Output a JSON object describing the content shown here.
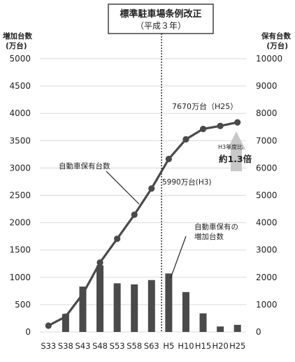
{
  "chart_data": {
    "type": "bar+line",
    "banner": {
      "line1": "標準駐車場条例改正",
      "line2": "（平成３年）"
    },
    "left_axis": {
      "title_line1": "増加台数",
      "title_line2": "(万台)",
      "ticks": [
        0,
        500,
        1000,
        1500,
        2000,
        2500,
        3000,
        3500,
        4000,
        4500,
        5000
      ],
      "ylim": [
        0,
        5000
      ]
    },
    "right_axis": {
      "title_line1": "保有台数",
      "title_line2": "(万台)",
      "ticks": [
        0,
        1000,
        2000,
        3000,
        4000,
        5000,
        6000,
        7000,
        8000,
        9000,
        10000
      ],
      "ylim": [
        0,
        10000
      ]
    },
    "categories": [
      "S33",
      "S38",
      "S43",
      "S48",
      "S53",
      "S58",
      "S63",
      "H5",
      "H10",
      "H15",
      "H20",
      "H25"
    ],
    "series": [
      {
        "name": "自動車保有の増加台数",
        "type": "bar",
        "axis": "left",
        "color": "#4a4a4a",
        "values": [
          0,
          330,
          830,
          1220,
          890,
          870,
          950,
          1070,
          730,
          340,
          100,
          130
        ]
      },
      {
        "name": "自動車保有台数",
        "type": "line",
        "axis": "right",
        "color": "#4a4a4a",
        "values": [
          230,
          560,
          1390,
          2540,
          3410,
          4290,
          5250,
          6330,
          7050,
          7430,
          7540,
          7670
        ]
      }
    ],
    "reference_line": {
      "position": "H3",
      "style": "dotted"
    },
    "annotations": {
      "line_label": "自動車保有台数",
      "bar_label_line1": "自動車保有の",
      "bar_label_line2": "増加台数",
      "h3_value": "5990万台(H3)",
      "h25_value": "7670万台（H25）",
      "ratio_small": "H3年度比",
      "ratio_big": "約1.3倍"
    }
  }
}
